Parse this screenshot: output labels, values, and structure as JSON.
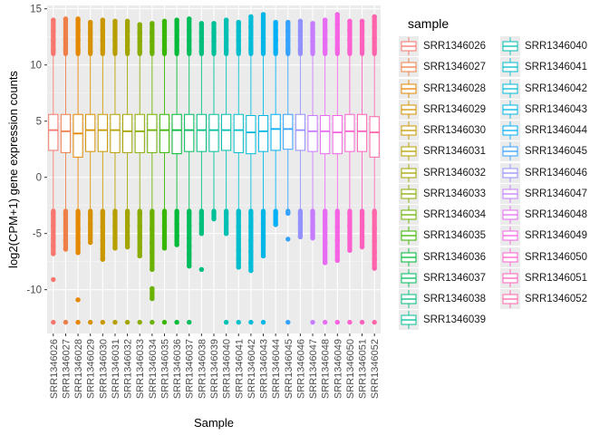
{
  "chart_data": {
    "type": "boxplot",
    "xlabel": "Sample",
    "ylabel": "log2(CPM+1) gene expression counts",
    "ylim": [
      -13.9,
      15.3
    ],
    "yticks": [
      -10,
      -5,
      0,
      5,
      10,
      15
    ],
    "grid": true,
    "legend_title": "sample",
    "legend_position": "right",
    "categories": [
      "SRR1346026",
      "SRR1346027",
      "SRR1346028",
      "SRR1346029",
      "SRR1346030",
      "SRR1346031",
      "SRR1346032",
      "SRR1346033",
      "SRR1346034",
      "SRR1346035",
      "SRR1346036",
      "SRR1346037",
      "SRR1346038",
      "SRR1346039",
      "SRR1346040",
      "SRR1346041",
      "SRR1346042",
      "SRR1346043",
      "SRR1346044",
      "SRR1346045",
      "SRR1346046",
      "SRR1346047",
      "SRR1346048",
      "SRR1346049",
      "SRR1346050",
      "SRR1346051",
      "SRR1346052"
    ],
    "colors": [
      "#F8766D",
      "#EF7F49",
      "#E58700",
      "#D69100",
      "#C99800",
      "#B79F00",
      "#A3A500",
      "#8AAB00",
      "#6BB100",
      "#39B600",
      "#00BA38",
      "#00BD5C",
      "#00BF7D",
      "#00C099",
      "#00C0B3",
      "#00BECC",
      "#00BCD8",
      "#00B7E8",
      "#00B0F6",
      "#35A2FF",
      "#9590FF",
      "#C77CFF",
      "#E76BF3",
      "#F564E3",
      "#FD61D1",
      "#FF62BC",
      "#FF65AA"
    ],
    "series": [
      {
        "name": "SRR1346026",
        "q1": 2.4,
        "median": 4.2,
        "q3": 5.6,
        "whisker_low": -3.0,
        "whisker_high": 11.0,
        "outliers_high": [
          11.3,
          12.2,
          13.0,
          14.0
        ],
        "outliers_low": [
          -3.2,
          -4.3,
          -5.4,
          -6.1,
          -6.8,
          -9.1,
          -12.9
        ]
      },
      {
        "name": "SRR1346027",
        "q1": 2.2,
        "median": 4.1,
        "q3": 5.6,
        "whisker_low": -3.0,
        "whisker_high": 11.0,
        "outliers_high": [
          11.4,
          12.3,
          13.2,
          14.1
        ],
        "outliers_low": [
          -3.2,
          -4.4,
          -5.6,
          -6.4,
          -12.9
        ]
      },
      {
        "name": "SRR1346028",
        "q1": 1.8,
        "median": 3.9,
        "q3": 5.6,
        "whisker_low": -3.0,
        "whisker_high": 11.0,
        "outliers_high": [
          11.3,
          12.2,
          13.1,
          14.1
        ],
        "outliers_low": [
          -3.3,
          -4.6,
          -5.8,
          -6.7,
          -10.9,
          -12.9
        ]
      },
      {
        "name": "SRR1346029",
        "q1": 2.3,
        "median": 4.2,
        "q3": 5.6,
        "whisker_low": -3.0,
        "whisker_high": 11.0,
        "outliers_high": [
          11.2,
          12.1,
          12.9,
          13.8
        ],
        "outliers_low": [
          -3.3,
          -4.2,
          -5.1,
          -5.8,
          -12.9
        ]
      },
      {
        "name": "SRR1346030",
        "q1": 2.3,
        "median": 4.2,
        "q3": 5.6,
        "whisker_low": -3.0,
        "whisker_high": 11.0,
        "outliers_high": [
          11.3,
          12.2,
          13.1,
          14.0
        ],
        "outliers_low": [
          -3.2,
          -4.4,
          -5.6,
          -6.4,
          -7.3,
          -12.9
        ]
      },
      {
        "name": "SRR1346031",
        "q1": 2.2,
        "median": 4.2,
        "q3": 5.6,
        "whisker_low": -3.0,
        "whisker_high": 11.0,
        "outliers_high": [
          11.3,
          12.2,
          13.0,
          13.9
        ],
        "outliers_low": [
          -3.2,
          -4.3,
          -5.4,
          -6.3,
          -12.9
        ]
      },
      {
        "name": "SRR1346032",
        "q1": 2.2,
        "median": 4.1,
        "q3": 5.6,
        "whisker_low": -3.0,
        "whisker_high": 11.0,
        "outliers_high": [
          11.3,
          12.2,
          13.0,
          13.9
        ],
        "outliers_low": [
          -3.2,
          -4.3,
          -5.4,
          -6.2,
          -12.9
        ]
      },
      {
        "name": "SRR1346033",
        "q1": 2.2,
        "median": 4.1,
        "q3": 5.6,
        "whisker_low": -3.0,
        "whisker_high": 11.0,
        "outliers_high": [
          11.2,
          12.1,
          12.9,
          13.6
        ],
        "outliers_low": [
          -3.2,
          -4.3,
          -5.4,
          -6.2,
          -7.0,
          -12.9
        ]
      },
      {
        "name": "SRR1346034",
        "q1": 2.2,
        "median": 4.2,
        "q3": 5.6,
        "whisker_low": -3.0,
        "whisker_high": 11.0,
        "outliers_high": [
          11.2,
          12.1,
          12.9,
          13.7
        ],
        "outliers_low": [
          -3.2,
          -4.6,
          -5.8,
          -6.7,
          -8.2,
          -9.9,
          -10.8,
          -12.9
        ]
      },
      {
        "name": "SRR1346035",
        "q1": 2.2,
        "median": 4.2,
        "q3": 5.6,
        "whisker_low": -3.0,
        "whisker_high": 11.0,
        "outliers_high": [
          11.3,
          12.2,
          13.0,
          13.9
        ],
        "outliers_low": [
          -3.2,
          -4.3,
          -5.4,
          -6.3,
          -12.9
        ]
      },
      {
        "name": "SRR1346036",
        "q1": 2.1,
        "median": 4.2,
        "q3": 5.6,
        "whisker_low": -3.0,
        "whisker_high": 11.0,
        "outliers_high": [
          11.3,
          12.2,
          13.1,
          14.0
        ],
        "outliers_low": [
          -3.2,
          -4.2,
          -5.2,
          -6.0,
          -12.9
        ]
      },
      {
        "name": "SRR1346037",
        "q1": 2.3,
        "median": 4.2,
        "q3": 5.6,
        "whisker_low": -3.0,
        "whisker_high": 11.0,
        "outliers_high": [
          11.3,
          12.2,
          13.1,
          14.1
        ],
        "outliers_low": [
          -3.2,
          -4.3,
          -5.4,
          -6.1,
          -6.8,
          -7.9,
          -12.9
        ]
      },
      {
        "name": "SRR1346038",
        "q1": 2.3,
        "median": 4.2,
        "q3": 5.6,
        "whisker_low": -3.0,
        "whisker_high": 11.0,
        "outliers_high": [
          11.2,
          12.1,
          12.9,
          13.7
        ],
        "outliers_low": [
          -3.2,
          -4.2,
          -5.0,
          -8.2
        ]
      },
      {
        "name": "SRR1346039",
        "q1": 2.3,
        "median": 4.2,
        "q3": 5.6,
        "whisker_low": -3.0,
        "whisker_high": 11.0,
        "outliers_high": [
          11.2,
          12.1,
          12.9,
          13.7
        ],
        "outliers_low": [
          -3.2,
          -3.7
        ]
      },
      {
        "name": "SRR1346040",
        "q1": 2.4,
        "median": 4.2,
        "q3": 5.6,
        "whisker_low": -3.0,
        "whisker_high": 11.0,
        "outliers_high": [
          11.3,
          12.2,
          13.1,
          14.0
        ],
        "outliers_low": [
          -3.2,
          -4.1,
          -5.0,
          -12.9
        ]
      },
      {
        "name": "SRR1346041",
        "q1": 2.2,
        "median": 4.2,
        "q3": 5.6,
        "whisker_low": -3.0,
        "whisker_high": 11.0,
        "outliers_high": [
          11.3,
          12.2,
          13.0,
          13.8
        ],
        "outliers_low": [
          -3.2,
          -4.4,
          -5.5,
          -6.5,
          -7.3,
          -8.0,
          -12.9
        ]
      },
      {
        "name": "SRR1346042",
        "q1": 2.1,
        "median": 4.0,
        "q3": 5.5,
        "whisker_low": -3.0,
        "whisker_high": 11.0,
        "outliers_high": [
          11.4,
          12.4,
          13.4,
          14.3
        ],
        "outliers_low": [
          -3.2,
          -4.4,
          -5.6,
          -6.6,
          -7.6,
          -8.3,
          -12.9
        ]
      },
      {
        "name": "SRR1346043",
        "q1": 2.3,
        "median": 4.1,
        "q3": 5.5,
        "whisker_low": -3.0,
        "whisker_high": 11.0,
        "outliers_high": [
          11.4,
          12.4,
          13.4,
          14.5
        ],
        "outliers_low": [
          -3.2,
          -4.2,
          -5.3,
          -6.0,
          -7.0,
          -12.9
        ]
      },
      {
        "name": "SRR1346044",
        "q1": 2.4,
        "median": 4.3,
        "q3": 5.6,
        "whisker_low": -3.0,
        "whisker_high": 11.0,
        "outliers_high": [
          11.3,
          12.2,
          13.1,
          13.8
        ],
        "outliers_low": [
          -3.2,
          -4.2
        ]
      },
      {
        "name": "SRR1346045",
        "q1": 2.5,
        "median": 4.3,
        "q3": 5.6,
        "whisker_low": -3.0,
        "whisker_high": 11.0,
        "outliers_high": [
          11.3,
          12.2,
          13.0,
          13.8
        ],
        "outliers_low": [
          -3.2,
          -5.5,
          -12.9
        ]
      },
      {
        "name": "SRR1346046",
        "q1": 2.4,
        "median": 4.2,
        "q3": 5.6,
        "whisker_low": -3.0,
        "whisker_high": 11.0,
        "outliers_high": [
          11.3,
          12.2,
          13.0,
          13.9
        ],
        "outliers_low": [
          -3.2,
          -4.2,
          -5.3
        ]
      },
      {
        "name": "SRR1346047",
        "q1": 2.3,
        "median": 4.1,
        "q3": 5.5,
        "whisker_low": -3.0,
        "whisker_high": 11.0,
        "outliers_high": [
          11.2,
          12.1,
          12.9,
          13.7
        ],
        "outliers_low": [
          -3.2,
          -4.3,
          -5.4,
          -12.9
        ]
      },
      {
        "name": "SRR1346048",
        "q1": 2.1,
        "median": 4.1,
        "q3": 5.5,
        "whisker_low": -3.0,
        "whisker_high": 11.0,
        "outliers_high": [
          11.3,
          12.2,
          13.1,
          14.0
        ],
        "outliers_low": [
          -3.2,
          -4.5,
          -5.8,
          -6.8,
          -7.6,
          -12.9
        ]
      },
      {
        "name": "SRR1346049",
        "q1": 2.1,
        "median": 4.0,
        "q3": 5.5,
        "whisker_low": -3.0,
        "whisker_high": 11.0,
        "outliers_high": [
          11.4,
          12.5,
          13.6,
          14.5
        ],
        "outliers_low": [
          -3.2,
          -4.4,
          -5.6,
          -6.6,
          -7.4,
          -12.9
        ]
      },
      {
        "name": "SRR1346050",
        "q1": 2.3,
        "median": 4.1,
        "q3": 5.6,
        "whisker_low": -3.0,
        "whisker_high": 11.0,
        "outliers_high": [
          11.3,
          12.2,
          13.1,
          13.9
        ],
        "outliers_low": [
          -3.2,
          -4.3,
          -5.4,
          -6.5,
          -12.9
        ]
      },
      {
        "name": "SRR1346051",
        "q1": 2.3,
        "median": 4.1,
        "q3": 5.6,
        "whisker_low": -3.0,
        "whisker_high": 11.0,
        "outliers_high": [
          11.3,
          12.2,
          13.1,
          13.9
        ],
        "outliers_low": [
          -3.2,
          -4.3,
          -5.3,
          -6.2,
          -12.9
        ]
      },
      {
        "name": "SRR1346052",
        "q1": 1.8,
        "median": 4.0,
        "q3": 5.4,
        "whisker_low": -3.0,
        "whisker_high": 11.0,
        "outliers_high": [
          11.4,
          12.4,
          13.4,
          14.3
        ],
        "outliers_low": [
          -3.2,
          -4.5,
          -5.7,
          -6.7,
          -7.3,
          -8.1,
          -12.9
        ]
      }
    ]
  }
}
